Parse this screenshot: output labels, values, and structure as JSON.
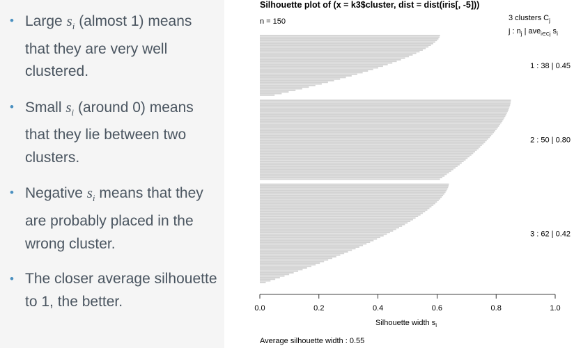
{
  "bullets": [
    {
      "pre": "Large ",
      "sym": "s",
      "sub": "i",
      "post": " (almost 1) means that they are very well clustered."
    },
    {
      "pre": "Small ",
      "sym": "s",
      "sub": "i",
      "post": " (around 0) means that they lie between two clusters."
    },
    {
      "pre": "Negative ",
      "sym": "s",
      "sub": "i",
      "post": " means that they are probably placed in the wrong cluster."
    },
    {
      "pre": "",
      "sym": "",
      "sub": "",
      "post": "The closer average silhouette to 1, the better."
    }
  ],
  "chart_data": {
    "type": "bar",
    "orientation": "horizontal",
    "title": "Silhouette plot of (x = k3$cluster, dist = dist(iris[, -5]))",
    "n_label": "n = 150",
    "legend_header": "3  clusters  C",
    "legend_header_sub": "j",
    "legend_sub_header": {
      "a": "j :  n",
      "a_sub": "j",
      "b": " | ave",
      "b_sub": "i∈Cj",
      "c": "  s",
      "c_sub": "i"
    },
    "xlabel": "Silhouette width s",
    "xlabel_sub": "i",
    "xlim": [
      0,
      1
    ],
    "xticks": [
      "0.0",
      "0.2",
      "0.4",
      "0.6",
      "0.8",
      "1.0"
    ],
    "footer": "Average silhouette width :  0.55",
    "bar_color": "#d3d3d3",
    "clusters": [
      {
        "label": "1 :  38  |  0.45",
        "n": 38,
        "max": 0.61,
        "min": 0.05,
        "avg": 0.45
      },
      {
        "label": "2 :  50  |  0.80",
        "n": 50,
        "max": 0.85,
        "min": 0.61,
        "avg": 0.8
      },
      {
        "label": "3 :  62  |  0.42",
        "n": 62,
        "max": 0.64,
        "min": 0.02,
        "avg": 0.42
      }
    ]
  }
}
